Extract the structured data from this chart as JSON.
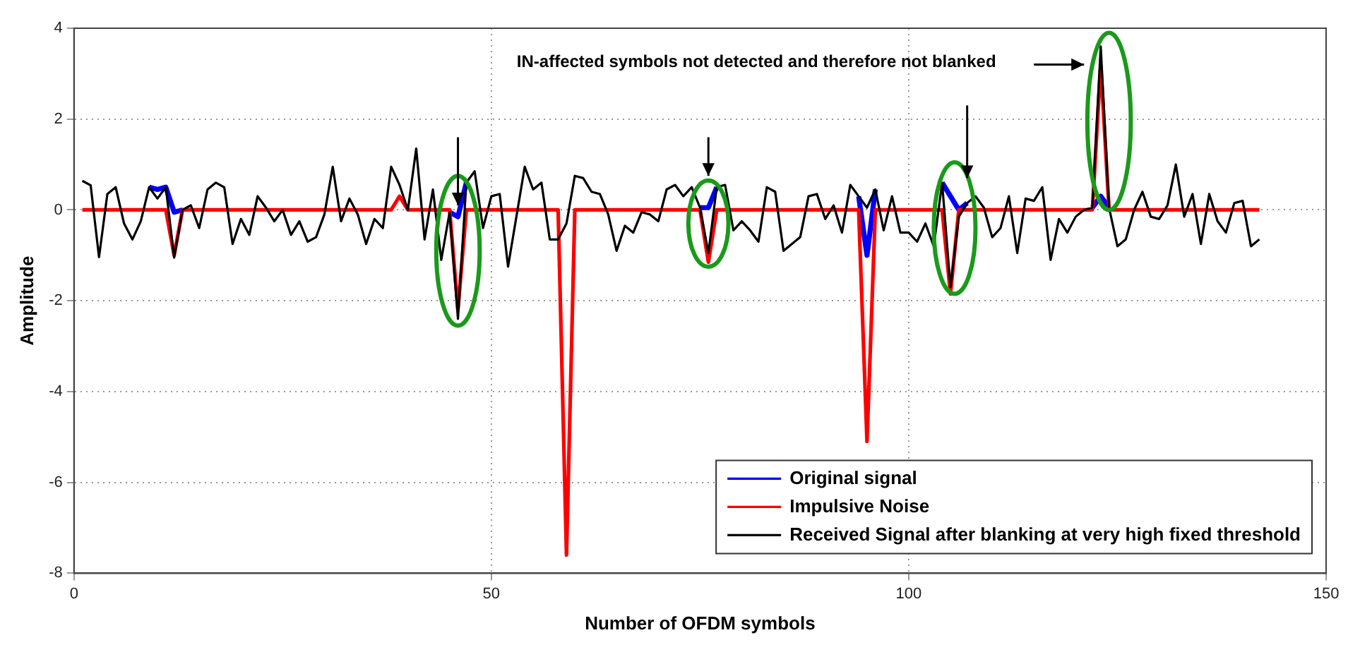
{
  "chart_data": {
    "type": "line",
    "xlabel": "Number of OFDM symbols",
    "ylabel": "Amplitude",
    "annotations": [
      "IN-affected symbols not detected and therefore not blanked"
    ],
    "x": [
      1,
      2,
      3,
      4,
      5,
      6,
      7,
      8,
      9,
      10,
      11,
      12,
      13,
      14,
      15,
      16,
      17,
      18,
      19,
      20,
      21,
      22,
      23,
      24,
      25,
      26,
      27,
      28,
      29,
      30,
      31,
      32,
      33,
      34,
      35,
      36,
      37,
      38,
      39,
      40,
      41,
      42,
      43,
      44,
      45,
      46,
      47,
      48,
      49,
      50,
      51,
      52,
      53,
      54,
      55,
      56,
      57,
      58,
      59,
      60,
      61,
      62,
      63,
      64,
      65,
      66,
      67,
      68,
      69,
      70,
      71,
      72,
      73,
      74,
      75,
      76,
      77,
      78,
      79,
      80,
      81,
      82,
      83,
      84,
      85,
      86,
      87,
      88,
      89,
      90,
      91,
      92,
      93,
      94,
      95,
      96,
      97,
      98,
      99,
      100,
      101,
      102,
      103,
      104,
      105,
      106,
      107,
      108,
      109,
      110,
      111,
      112,
      113,
      114,
      115,
      116,
      117,
      118,
      119,
      120,
      121,
      122,
      123,
      124,
      125,
      126,
      127,
      128,
      129,
      130,
      131,
      132,
      133,
      134,
      135,
      136,
      137,
      138,
      139,
      140,
      141,
      142
    ],
    "series": [
      {
        "name": "Original signal",
        "color": "#0000ff",
        "values": [
          null,
          null,
          null,
          null,
          null,
          null,
          null,
          null,
          0.5,
          0.45,
          0.5,
          -0.05,
          0,
          null,
          null,
          null,
          null,
          null,
          null,
          null,
          null,
          null,
          null,
          null,
          null,
          null,
          null,
          null,
          null,
          null,
          null,
          null,
          null,
          null,
          null,
          null,
          null,
          null,
          null,
          null,
          null,
          null,
          null,
          null,
          -0.05,
          -0.15,
          0.6,
          null,
          null,
          null,
          null,
          null,
          null,
          null,
          null,
          null,
          null,
          null,
          null,
          null,
          null,
          null,
          null,
          null,
          null,
          null,
          null,
          null,
          null,
          null,
          null,
          null,
          null,
          null,
          0.05,
          0.05,
          0.5,
          null,
          null,
          null,
          null,
          null,
          null,
          null,
          null,
          null,
          null,
          null,
          null,
          null,
          null,
          null,
          null,
          0.3,
          -1.0,
          0.45,
          null,
          null,
          null,
          null,
          null,
          null,
          null,
          0.6,
          0.3,
          0,
          0.15,
          null,
          null,
          null,
          null,
          null,
          null,
          null,
          null,
          null,
          null,
          null,
          null,
          null,
          null,
          0.05,
          0.3,
          0.05,
          null,
          null,
          null,
          null,
          null,
          null,
          null,
          null,
          null,
          null,
          null,
          null,
          null,
          null,
          null,
          null,
          null,
          null
        ]
      },
      {
        "name": "Impulsive Noise",
        "color": "#ff0000",
        "values": [
          0,
          0,
          0,
          0,
          0,
          0,
          0,
          0,
          0,
          0,
          0,
          -1.0,
          0,
          0,
          0,
          0,
          0,
          0,
          0,
          0,
          0,
          0,
          0,
          0,
          0,
          0,
          0,
          0,
          0,
          0,
          0,
          0,
          0,
          0,
          0,
          0,
          0,
          0,
          0.3,
          0,
          0,
          0,
          0,
          0,
          0,
          -2.2,
          0,
          0,
          0,
          0,
          0,
          0,
          0,
          0,
          0,
          0,
          0,
          0,
          -7.6,
          0,
          0,
          0,
          0,
          0,
          0,
          0,
          0,
          0,
          0,
          0,
          0,
          0,
          0,
          0,
          0,
          -1.15,
          0,
          0,
          0,
          0,
          0,
          0,
          0,
          0,
          0,
          0,
          0,
          0,
          0,
          0,
          0,
          0,
          0,
          0,
          -5.1,
          0,
          0,
          0,
          0,
          0,
          0,
          0,
          0,
          0,
          -1.85,
          0,
          0,
          0,
          0,
          0,
          0,
          0,
          0,
          0,
          0,
          0,
          0,
          0,
          0,
          0,
          0,
          0,
          3.2,
          0,
          0,
          0,
          0,
          0,
          0,
          0,
          0,
          0,
          0,
          0,
          0,
          0,
          0,
          0,
          0,
          0,
          0,
          0
        ]
      },
      {
        "name": "Received Signal after blanking at very high fixed threshold",
        "color": "#000000",
        "values": [
          0.64,
          0.54,
          -1.04,
          0.35,
          0.5,
          -0.3,
          -0.65,
          -0.25,
          0.5,
          0.25,
          0.5,
          -1.05,
          0,
          0.1,
          -0.4,
          0.45,
          0.6,
          0.5,
          -0.75,
          -0.2,
          -0.55,
          0.3,
          0.05,
          -0.25,
          0,
          -0.55,
          -0.25,
          -0.7,
          -0.6,
          -0.1,
          0.95,
          -0.25,
          0.25,
          -0.1,
          -0.75,
          -0.2,
          -0.4,
          0.95,
          0.55,
          0,
          1.35,
          -0.65,
          0.45,
          -1.1,
          -0.05,
          -2.4,
          0.6,
          0.85,
          -0.4,
          0.3,
          0.35,
          -1.25,
          -0.15,
          0.95,
          0.45,
          0.6,
          -0.65,
          -0.65,
          -0.3,
          0.75,
          0.7,
          0.4,
          0.35,
          -0.1,
          -0.9,
          -0.35,
          -0.5,
          -0.05,
          -0.1,
          -0.25,
          0.45,
          0.55,
          0.3,
          0.5,
          0.05,
          -0.95,
          0.5,
          0.55,
          -0.45,
          -0.25,
          -0.45,
          -0.7,
          0.5,
          0.4,
          -0.9,
          -0.75,
          -0.6,
          0.3,
          0.35,
          -0.2,
          0.1,
          -0.5,
          0.55,
          0.3,
          0.05,
          0.45,
          -0.45,
          0.3,
          -0.5,
          -0.5,
          -0.7,
          -0.3,
          -0.8,
          0.6,
          -1.7,
          -0.15,
          0.15,
          0.3,
          0.05,
          -0.6,
          -0.4,
          0.3,
          -0.95,
          0.25,
          0.2,
          0.5,
          -1.1,
          -0.2,
          -0.5,
          -0.15,
          0,
          0.05,
          3.6,
          0.05,
          -0.8,
          -0.65,
          0,
          0.4,
          -0.15,
          -0.2,
          0.1,
          1.0,
          -0.15,
          0.35,
          -0.75,
          0.35,
          -0.25,
          -0.5,
          0.15,
          0.2,
          -0.8,
          -0.65
        ]
      }
    ],
    "xlim": [
      0,
      150
    ],
    "xticks": [
      0,
      50,
      100,
      150
    ],
    "ylim": [
      -8,
      4
    ],
    "yticks": [
      -8,
      -6,
      -4,
      -2,
      0,
      2,
      4
    ],
    "grid": true,
    "legend": "bottom right",
    "marker": "none",
    "line_style": "solid"
  }
}
